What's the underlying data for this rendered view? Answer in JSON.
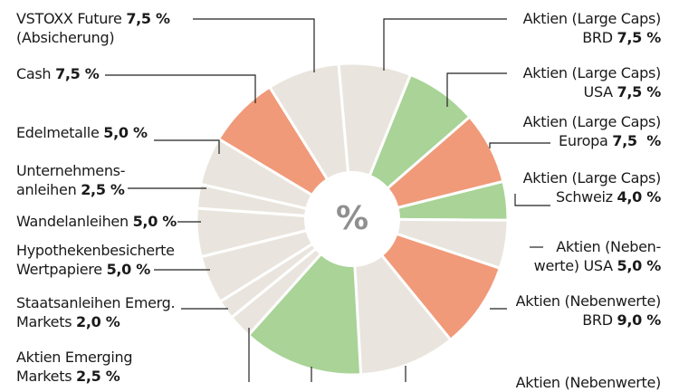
{
  "chart_data": {
    "type": "pie",
    "center_label": "%",
    "colors": {
      "light": "#e9e5de",
      "green": "#a9d397",
      "orange": "#f09a79"
    },
    "slices": [
      {
        "label": "Aktien (Large Caps) BRD",
        "line1": "Aktien (Large Caps)",
        "line2": "BRD",
        "value": 7.5,
        "value_text": "7,5 %",
        "color": "light"
      },
      {
        "label": "Aktien (Large Caps) USA",
        "line1": "Aktien (Large Caps)",
        "line2": "USA",
        "value": 7.5,
        "value_text": "7,5 %",
        "color": "green"
      },
      {
        "label": "Aktien (Large Caps) Europa",
        "line1": "Aktien (Large Caps)",
        "line2": "Europa",
        "value": 7.5,
        "value_text": "7,5  %",
        "color": "orange"
      },
      {
        "label": "Aktien (Large Caps) Schweiz",
        "line1": "Aktien (Large Caps)",
        "line2": "Schweiz",
        "value": 4.0,
        "value_text": "4,0 %",
        "color": "green"
      },
      {
        "label": "Aktien (Nebenwerte) USA",
        "line1": "Aktien (Neben-",
        "line2": "werte) USA",
        "value": 5.0,
        "value_text": "5,0 %",
        "color": "light"
      },
      {
        "label": "Aktien (Nebenwerte) BRD",
        "line1": "Aktien (Nebenwerte)",
        "line2": "BRD",
        "value": 9.0,
        "value_text": "9,0 %",
        "color": "orange"
      },
      {
        "label": "",
        "value": 10.0,
        "color": "light"
      },
      {
        "label": "",
        "value": 12.5,
        "color": "green"
      },
      {
        "label": "",
        "value": 2.5,
        "color": "light"
      },
      {
        "label": "Staatsanleihen Emerg. Markets",
        "line1": "Staatsanleihen Emerg.",
        "line2": "Markets",
        "value": 2.0,
        "value_text": "2,0 %",
        "color": "light"
      },
      {
        "label": "Hypothekenbesicherte Wertpapiere",
        "line1": "Hypothekenbesicherte",
        "line2": "Wertpapiere",
        "value": 5.0,
        "value_text": "5,0 %",
        "color": "light"
      },
      {
        "label": "Wandelanleihen",
        "line1": "Wandelanleihen",
        "value": 5.0,
        "value_text": "5,0 %",
        "color": "light"
      },
      {
        "label": "Unternehmensanleihen",
        "line1": "Unternehmens-",
        "line2": "anleihen",
        "value": 2.5,
        "value_text": "2,5 %",
        "color": "light"
      },
      {
        "label": "Edelmetalle",
        "line1": "Edelmetalle",
        "value": 5.0,
        "value_text": "5,0 %",
        "color": "light"
      },
      {
        "label": "Cash",
        "line1": "Cash",
        "value": 7.5,
        "value_text": "7,5 %",
        "color": "orange"
      },
      {
        "label": "VSTOXX Future (Absicherung)",
        "line1": "VSTOXX Future",
        "line2": "(Absicherung)",
        "value": 7.5,
        "value_text": "7,5 %",
        "color": "light"
      }
    ],
    "extra_labels": [
      {
        "line1": "Aktien Emerging",
        "line2": "Markets",
        "value_text": "2,5 %"
      },
      {
        "line1": "Aktien (Nebenwerte)"
      }
    ]
  }
}
